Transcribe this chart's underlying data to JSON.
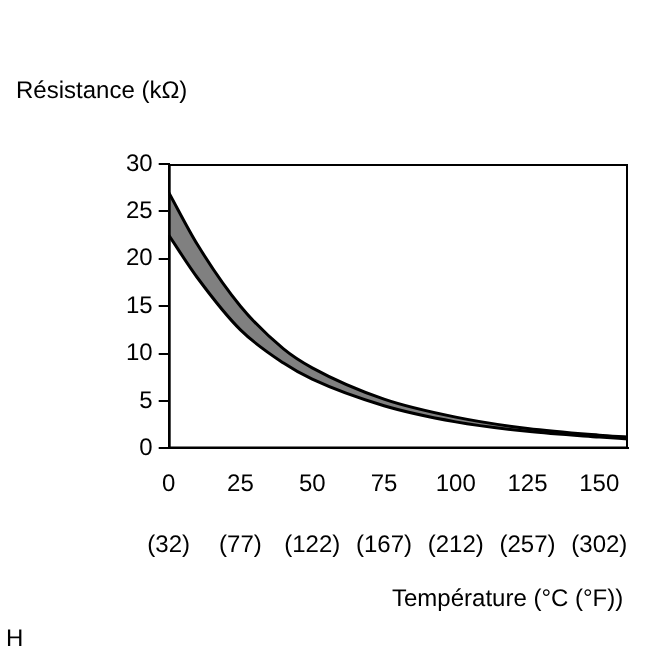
{
  "chart_data": {
    "type": "line",
    "xlabel": "Température (°C (°F))",
    "ylabel": "Résistance (kΩ)",
    "annotations": [
      "H"
    ],
    "x": [
      0,
      10,
      25,
      40,
      50,
      75,
      100,
      125,
      150,
      160
    ],
    "series": [
      {
        "color": "#000000",
        "values": [
          22.5,
          18,
          12.5,
          9,
          7.3,
          4.5,
          2.8,
          1.8,
          1.2,
          1.0
        ]
      },
      {
        "color": "#000000",
        "values": [
          27,
          21.5,
          15,
          10.5,
          8.5,
          5.2,
          3.3,
          2.1,
          1.4,
          1.2
        ]
      }
    ],
    "xlim": [
      0,
      160
    ],
    "xticks": [
      0,
      25,
      50,
      75,
      100,
      125,
      150
    ],
    "x2lim": [
      32,
      320
    ],
    "x2ticks": [
      {
        "value": 32,
        "label": "(32)"
      },
      {
        "value": 77,
        "label": "(77)"
      },
      {
        "value": 122,
        "label": "(122)"
      },
      {
        "value": 167,
        "label": "(167)"
      },
      {
        "value": 212,
        "label": "(212)"
      },
      {
        "value": 257,
        "label": "(257)"
      },
      {
        "value": 302,
        "label": "(302)"
      }
    ],
    "ylim": [
      0,
      30
    ],
    "yticks": [
      0,
      5,
      10,
      15,
      20,
      25,
      30
    ],
    "grid": false,
    "legend": false,
    "marker": "none",
    "line_style": "solid"
  }
}
